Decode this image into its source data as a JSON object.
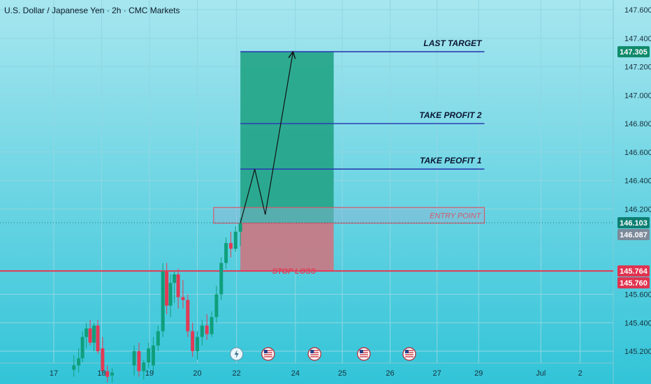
{
  "title": "U.S. Dollar / Japanese Yen · 2h · CMC Markets",
  "colors": {
    "bg_top": "#a7e6ef",
    "bg_bottom": "#32c4d8",
    "grid": "#8fd7e2",
    "axis_text": "#18313d",
    "bull": "#0f9f7c",
    "bear": "#e23a55",
    "target_zone": "#27a68b",
    "stop_zone": "#c57a86",
    "level_line": "#2a3fb0",
    "stop_line": "#e23a55",
    "entry_border": "#d25a6e",
    "price_badge": "#0d7f72",
    "stop_badge": "#e0334f",
    "gray_badge": "#7c8a99"
  },
  "chart_data": {
    "type": "candlestick",
    "ylim": [
      145.08,
      147.66
    ],
    "y_ticks": [
      147.6,
      147.4,
      147.2,
      147.0,
      146.8,
      146.6,
      146.4,
      146.2,
      145.6,
      145.4,
      145.2
    ],
    "y_tick_labels": [
      "147.600",
      "147.400",
      "147.200",
      "147.000",
      "146.800",
      "146.600",
      "146.400",
      "146.200",
      "145.600",
      "145.400",
      "145.200"
    ],
    "x_ticks": [
      {
        "label": "17",
        "t": 0
      },
      {
        "label": "18",
        "t": 1
      },
      {
        "label": "19",
        "t": 2
      },
      {
        "label": "20",
        "t": 3
      },
      {
        "label": "22",
        "t": 3.82
      },
      {
        "label": "24",
        "t": 5.05
      },
      {
        "label": "25",
        "t": 6.03
      },
      {
        "label": "26",
        "t": 7.03
      },
      {
        "label": "27",
        "t": 8.01
      },
      {
        "label": "29",
        "t": 8.88
      },
      {
        "label": "Jul",
        "t": 10.18
      },
      {
        "label": "2",
        "t": 11.0
      }
    ],
    "candles": [
      {
        "t": 0.42,
        "o": 145.07,
        "h": 145.17,
        "l": 145.02,
        "c": 145.1
      },
      {
        "t": 0.52,
        "o": 145.1,
        "h": 145.22,
        "l": 145.05,
        "c": 145.15
      },
      {
        "t": 0.6,
        "o": 145.15,
        "h": 145.34,
        "l": 145.12,
        "c": 145.3
      },
      {
        "t": 0.68,
        "o": 145.3,
        "h": 145.4,
        "l": 145.22,
        "c": 145.36
      },
      {
        "t": 0.76,
        "o": 145.36,
        "h": 145.42,
        "l": 145.24,
        "c": 145.26
      },
      {
        "t": 0.84,
        "o": 145.26,
        "h": 145.4,
        "l": 145.2,
        "c": 145.38
      },
      {
        "t": 0.92,
        "o": 145.38,
        "h": 145.42,
        "l": 145.18,
        "c": 145.2
      },
      {
        "t": 1.02,
        "o": 145.22,
        "h": 145.3,
        "l": 145.04,
        "c": 145.06
      },
      {
        "t": 1.12,
        "o": 145.06,
        "h": 145.1,
        "l": 144.98,
        "c": 145.02
      },
      {
        "t": 1.22,
        "o": 145.03,
        "h": 145.08,
        "l": 144.98,
        "c": 145.05
      },
      {
        "t": 1.68,
        "o": 145.1,
        "h": 145.24,
        "l": 145.03,
        "c": 145.2
      },
      {
        "t": 1.78,
        "o": 145.2,
        "h": 145.26,
        "l": 145.02,
        "c": 145.06
      },
      {
        "t": 1.88,
        "o": 145.06,
        "h": 145.14,
        "l": 145.0,
        "c": 145.12
      },
      {
        "t": 1.98,
        "o": 145.12,
        "h": 145.26,
        "l": 145.08,
        "c": 145.22
      },
      {
        "t": 2.08,
        "o": 145.1,
        "h": 145.3,
        "l": 145.05,
        "c": 145.24
      },
      {
        "t": 2.18,
        "o": 145.24,
        "h": 145.38,
        "l": 145.2,
        "c": 145.34
      },
      {
        "t": 2.28,
        "o": 145.34,
        "h": 145.82,
        "l": 145.3,
        "c": 145.76
      },
      {
        "t": 2.36,
        "o": 145.76,
        "h": 145.82,
        "l": 145.46,
        "c": 145.52
      },
      {
        "t": 2.44,
        "o": 145.52,
        "h": 145.74,
        "l": 145.44,
        "c": 145.68
      },
      {
        "t": 2.52,
        "o": 145.68,
        "h": 145.76,
        "l": 145.54,
        "c": 145.74
      },
      {
        "t": 2.6,
        "o": 145.74,
        "h": 145.78,
        "l": 145.5,
        "c": 145.58
      },
      {
        "t": 2.7,
        "o": 145.58,
        "h": 145.7,
        "l": 145.5,
        "c": 145.56
      },
      {
        "t": 2.8,
        "o": 145.56,
        "h": 145.6,
        "l": 145.3,
        "c": 145.34
      },
      {
        "t": 2.9,
        "o": 145.34,
        "h": 145.4,
        "l": 145.16,
        "c": 145.2
      },
      {
        "t": 3.0,
        "o": 145.2,
        "h": 145.34,
        "l": 145.14,
        "c": 145.3
      },
      {
        "t": 3.1,
        "o": 145.3,
        "h": 145.42,
        "l": 145.24,
        "c": 145.38
      },
      {
        "t": 3.2,
        "o": 145.38,
        "h": 145.46,
        "l": 145.28,
        "c": 145.32
      },
      {
        "t": 3.3,
        "o": 145.32,
        "h": 145.48,
        "l": 145.3,
        "c": 145.44
      },
      {
        "t": 3.4,
        "o": 145.44,
        "h": 145.66,
        "l": 145.4,
        "c": 145.6
      },
      {
        "t": 3.5,
        "o": 145.6,
        "h": 145.86,
        "l": 145.56,
        "c": 145.82
      },
      {
        "t": 3.6,
        "o": 145.82,
        "h": 146.0,
        "l": 145.78,
        "c": 145.96
      },
      {
        "t": 3.7,
        "o": 145.96,
        "h": 146.04,
        "l": 145.86,
        "c": 145.92
      },
      {
        "t": 3.8,
        "o": 145.92,
        "h": 146.08,
        "l": 145.9,
        "c": 146.04
      },
      {
        "t": 3.9,
        "o": 146.04,
        "h": 146.14,
        "l": 145.94,
        "c": 146.1
      }
    ],
    "position": {
      "t_start": 3.9,
      "t_end": 5.85,
      "entry": 146.103,
      "stop": 145.764,
      "target": 147.305
    },
    "levels": [
      {
        "label": "LAST TARGET",
        "price": 147.305
      },
      {
        "label": "TAKE PROFIT 2",
        "price": 146.8
      },
      {
        "label": "TAKE PEOFIT 1",
        "price": 146.48
      }
    ],
    "levels_t_end": 9.0,
    "entry_zone": {
      "label": "ENTRY POINT",
      "top": 146.21,
      "bottom": 146.1,
      "t_start": 3.34,
      "t_end": 9.0
    },
    "stop_line": {
      "label": "STOP LOSS",
      "price": 145.764
    },
    "path": [
      {
        "t": 3.9,
        "p": 146.1
      },
      {
        "t": 4.2,
        "p": 146.48
      },
      {
        "t": 4.42,
        "p": 146.16
      },
      {
        "t": 5.0,
        "p": 147.305
      }
    ],
    "event_icons": [
      {
        "t": 3.82,
        "icon": "lightning-icon"
      },
      {
        "t": 4.48,
        "icon": "us-flag-icon"
      },
      {
        "t": 5.45,
        "icon": "us-flag-icon"
      },
      {
        "t": 6.48,
        "icon": "us-flag-icon"
      },
      {
        "t": 7.43,
        "icon": "us-flag-icon"
      }
    ],
    "price_badges": [
      {
        "price": 147.305,
        "label": "147.305",
        "style": "green"
      },
      {
        "price": 146.103,
        "label": "146.103",
        "style": "teal"
      },
      {
        "price": 146.087,
        "label": "146.087",
        "style": "gray"
      },
      {
        "price": 145.764,
        "label": "145.764",
        "style": "red"
      },
      {
        "price": 145.76,
        "label": "145.760",
        "style": "red"
      }
    ]
  }
}
